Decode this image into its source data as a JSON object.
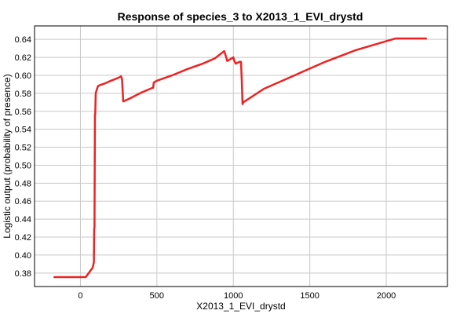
{
  "chart_data": {
    "type": "line",
    "title": "Response of species_3 to X2013_1_EVI_drystd",
    "xlabel": "X2013_1_EVI_drystd",
    "ylabel": "Logistic output (probability of presence)",
    "xlim": [
      -300,
      2400
    ],
    "ylim": [
      0.365,
      0.655
    ],
    "xticks": [
      0,
      500,
      1000,
      1500,
      2000
    ],
    "yticks": [
      0.38,
      0.4,
      0.42,
      0.44,
      0.46,
      0.48,
      0.5,
      0.52,
      0.54,
      0.56,
      0.58,
      0.6,
      0.62,
      0.64
    ],
    "grid": true,
    "series": [
      {
        "color": "#ee2222",
        "x": [
          -170,
          35,
          80,
          88,
          90,
          92,
          95,
          97,
          100,
          105,
          115,
          125,
          160,
          200,
          230,
          258,
          265,
          272,
          280,
          320,
          400,
          470,
          475,
          480,
          500,
          600,
          700,
          800,
          880,
          940,
          950,
          960,
          1000,
          1005,
          1015,
          1040,
          1050,
          1055,
          1060,
          1065,
          1200,
          1400,
          1600,
          1800,
          2000,
          2060,
          2260
        ],
        "y": [
          0.3755,
          0.3755,
          0.386,
          0.392,
          0.428,
          0.432,
          0.555,
          0.558,
          0.58,
          0.583,
          0.588,
          0.589,
          0.591,
          0.594,
          0.596,
          0.598,
          0.599,
          0.596,
          0.571,
          0.574,
          0.581,
          0.586,
          0.586,
          0.592,
          0.594,
          0.6,
          0.607,
          0.613,
          0.619,
          0.627,
          0.622,
          0.616,
          0.62,
          0.617,
          0.613,
          0.615,
          0.615,
          0.595,
          0.568,
          0.57,
          0.585,
          0.6,
          0.615,
          0.628,
          0.638,
          0.641,
          0.641
        ]
      }
    ]
  }
}
